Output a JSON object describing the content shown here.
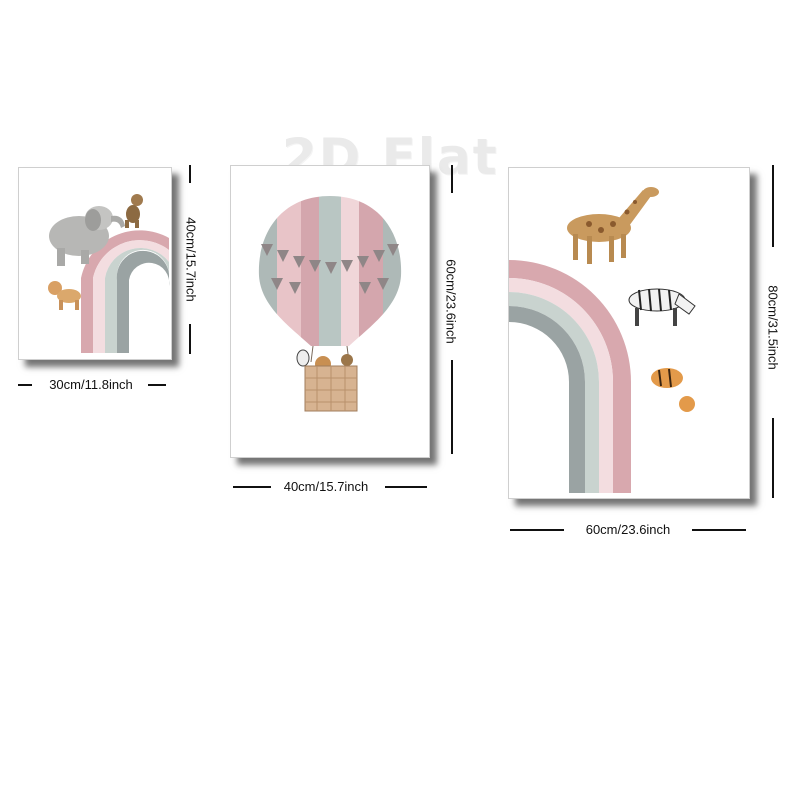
{
  "watermark": "2D Flat",
  "posters": [
    {
      "width_label": "30cm/11.8inch",
      "height_label": "40cm/15.7inch",
      "animals": [
        "elephant",
        "monkey",
        "lion-cub"
      ]
    },
    {
      "width_label": "40cm/15.7inch",
      "height_label": "60cm/23.6inch",
      "animals": [
        "hot-air-balloon",
        "zebra",
        "lion",
        "monkey"
      ]
    },
    {
      "width_label": "60cm/23.6inch",
      "height_label": "80cm/31.5inch",
      "animals": [
        "giraffe",
        "zebra",
        "tiger-cub"
      ]
    }
  ],
  "colors": {
    "pink": "#d8a8ae",
    "light_pink": "#f3dde0",
    "sage": "#c9d3cf",
    "grey": "#9aa3a3",
    "dim_line": "#111111",
    "shadow": "#333333"
  }
}
